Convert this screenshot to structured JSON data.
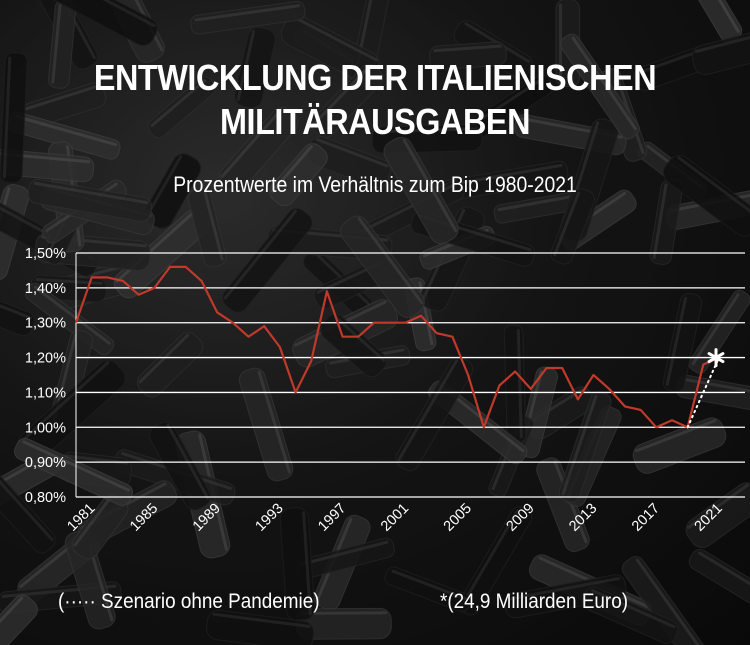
{
  "title_line1": "ENTWICKLUNG DER ITALIENISCHEN",
  "title_line2": "MILITÄRAUSGABEN",
  "subtitle": "Prozentwerte im Verhältnis zum Bip 1980-2021",
  "notes": {
    "scenario": "(····· Szenario ohne Pandemie)",
    "asterisk": "*(24,9 Milliarden Euro)"
  },
  "colors": {
    "line": "#c0392b",
    "gridlines": "#ffffff",
    "scenario": "#ffffff",
    "text": "#ffffff"
  },
  "chart_data": {
    "type": "line",
    "title": "ENTWICKLUNG DER ITALIENISCHEN MILITÄRAUSGABEN",
    "subtitle": "Prozentwerte im Verhältnis zum Bip 1980-2021",
    "ylim": [
      0.8,
      1.5
    ],
    "yticks": [
      0.8,
      0.9,
      1.0,
      1.1,
      1.2,
      1.3,
      1.4,
      1.5
    ],
    "ytick_labels": [
      "0,80%",
      "0,90%",
      "1,00%",
      "1,10%",
      "1,20%",
      "1,30%",
      "1,40%",
      "1,50%"
    ],
    "xlim": [
      1980,
      2021
    ],
    "xticks": [
      1981,
      1985,
      1989,
      1993,
      1997,
      2001,
      2005,
      2009,
      2013,
      2017,
      2021
    ],
    "grid": true,
    "series": [
      {
        "name": "",
        "x": [
          1980,
          1981,
          1982,
          1983,
          1984,
          1985,
          1986,
          1987,
          1988,
          1989,
          1990,
          1991,
          1992,
          1993,
          1994,
          1995,
          1996,
          1997,
          1998,
          1999,
          2000,
          2001,
          2002,
          2003,
          2004,
          2005,
          2006,
          2007,
          2008,
          2009,
          2010,
          2011,
          2012,
          2013,
          2014,
          2015,
          2016,
          2017,
          2018,
          2019,
          2020,
          2021
        ],
        "y": [
          1.3,
          1.43,
          1.43,
          1.42,
          1.38,
          1.4,
          1.46,
          1.46,
          1.42,
          1.33,
          1.3,
          1.26,
          1.29,
          1.23,
          1.1,
          1.19,
          1.39,
          1.26,
          1.26,
          1.3,
          1.3,
          1.3,
          1.32,
          1.27,
          1.26,
          1.15,
          1.0,
          1.12,
          1.16,
          1.11,
          1.17,
          1.17,
          1.08,
          1.15,
          1.11,
          1.06,
          1.05,
          1.0,
          1.02,
          1.0,
          1.18,
          1.2
        ]
      },
      {
        "name": "Szenario ohne Pandemie",
        "style": "dotted",
        "x": [
          2019,
          2021
        ],
        "y": [
          1.0,
          1.2
        ]
      }
    ],
    "annotations": [
      {
        "x": 2021,
        "y": 1.2,
        "marker": "asterisk",
        "text": "*(24,9 Milliarden Euro)"
      }
    ]
  }
}
